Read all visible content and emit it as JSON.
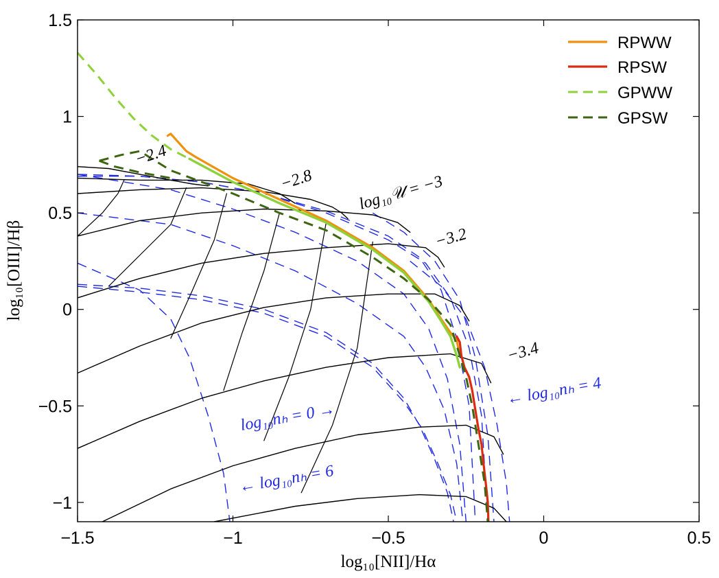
{
  "chart_data": {
    "type": "line",
    "xlabel": "log₁₀[NII]/Hα",
    "ylabel": "log₁₀[OIII]/Hβ",
    "xlim": [
      -1.5,
      0.5
    ],
    "ylim": [
      -1.1,
      1.5
    ],
    "xticks": [
      -1.5,
      -1,
      -0.5,
      0,
      0.5
    ],
    "xtick_labels": [
      "−1.5",
      "−1",
      "−0.5",
      "0",
      "0.5"
    ],
    "yticks": [
      -1,
      -0.5,
      0,
      0.5,
      1,
      1.5
    ],
    "ytick_labels": [
      "−1",
      "−0.5",
      "0",
      "0.5",
      "1",
      "1.5"
    ],
    "legend_position": "top-right",
    "legend": [
      {
        "name": "RPWW",
        "color": "#f0900f",
        "style": "solid"
      },
      {
        "name": "RPSW",
        "color": "#de2a10",
        "style": "solid"
      },
      {
        "name": "GPWW",
        "color": "#8fd13a",
        "style": "dashed"
      },
      {
        "name": "GPSW",
        "color": "#3e6612",
        "style": "dashed"
      }
    ],
    "series": [
      {
        "name": "RPWW",
        "color": "#f0900f",
        "style": "solid",
        "width": 3.2,
        "x": [
          -1.21,
          -1.2,
          -1.15,
          -1.12,
          -1.0,
          -0.85,
          -0.7,
          -0.55,
          -0.45,
          -0.37,
          -0.33,
          -0.3,
          -0.28,
          -0.275,
          -0.27
        ],
        "y": [
          0.9,
          0.91,
          0.82,
          0.79,
          0.68,
          0.57,
          0.46,
          0.32,
          0.2,
          0.05,
          -0.05,
          -0.12,
          -0.16,
          -0.2,
          -0.23
        ]
      },
      {
        "name": "RPSW",
        "color": "#de2a10",
        "style": "solid",
        "width": 3.2,
        "x": [
          -0.28,
          -0.27,
          -0.265,
          -0.255,
          -0.24,
          -0.23,
          -0.22,
          -0.21,
          -0.2,
          -0.195,
          -0.19,
          -0.185,
          -0.18,
          -0.178
        ],
        "y": [
          -0.14,
          -0.17,
          -0.24,
          -0.3,
          -0.35,
          -0.42,
          -0.52,
          -0.62,
          -0.7,
          -0.78,
          -0.85,
          -0.92,
          -1.0,
          -1.1
        ]
      },
      {
        "name": "GPWW",
        "color": "#8fd13a",
        "style": "dashed",
        "width": 3,
        "x": [
          -1.5,
          -1.44,
          -1.38,
          -1.32,
          -1.26,
          -1.2,
          -1.14
        ],
        "y": [
          1.33,
          1.22,
          1.1,
          0.99,
          0.9,
          0.83,
          0.78
        ]
      },
      {
        "name": "GPWW",
        "color": "#8fd13a",
        "style": "solid",
        "width": 3.4,
        "x": [
          -1.14,
          -1.0,
          -0.85,
          -0.7,
          -0.55,
          -0.45,
          -0.37,
          -0.33,
          -0.3,
          -0.28,
          -0.27
        ],
        "y": [
          0.78,
          0.66,
          0.55,
          0.45,
          0.31,
          0.19,
          0.04,
          -0.06,
          -0.14,
          -0.24,
          -0.3
        ]
      },
      {
        "name": "GPSW",
        "color": "#3e6612",
        "style": "dashed",
        "width": 3,
        "x": [
          -1.43,
          -1.36,
          -1.3,
          -1.2,
          -1.0,
          -0.85,
          -0.7,
          -0.55,
          -0.45,
          -0.37,
          -0.3,
          -0.27,
          -0.25,
          -0.23,
          -0.21,
          -0.19,
          -0.18
        ],
        "y": [
          0.77,
          0.8,
          0.82,
          0.72,
          0.6,
          0.5,
          0.41,
          0.27,
          0.16,
          0.05,
          -0.08,
          -0.24,
          -0.35,
          -0.5,
          -0.7,
          -0.9,
          -1.1
        ]
      },
      {
        "name": "GPSW",
        "color": "#3e6612",
        "style": "dashed",
        "width": 3,
        "x": [
          -1.43,
          -1.38,
          -1.3,
          -1.2
        ],
        "y": [
          0.77,
          0.74,
          0.71,
          0.68
        ]
      }
    ],
    "u_grid": {
      "color": "#000000",
      "style": "solid",
      "lines": [
        {
          "x": [
            -1.5,
            -1.4,
            -1.3,
            -1.2,
            -1.13,
            -1.08
          ],
          "y": [
            0.74,
            0.73,
            0.7,
            0.67,
            0.65,
            0.64
          ]
        },
        {
          "x": [
            -1.5,
            -1.3,
            -1.1,
            -0.95,
            -0.85,
            -0.8
          ],
          "y": [
            0.68,
            0.67,
            0.67,
            0.65,
            0.6,
            0.55
          ]
        },
        {
          "x": [
            -1.5,
            -1.3,
            -1.1,
            -0.9,
            -0.75,
            -0.68,
            -0.65,
            -0.63
          ],
          "y": [
            0.6,
            0.62,
            0.63,
            0.61,
            0.57,
            0.53,
            0.5,
            0.47
          ]
        },
        {
          "x": [
            -1.5,
            -1.3,
            -1.1,
            -0.9,
            -0.7,
            -0.55,
            -0.47,
            -0.43
          ],
          "y": [
            0.38,
            0.46,
            0.5,
            0.52,
            0.51,
            0.49,
            0.45,
            0.4
          ]
        },
        {
          "x": [
            -1.5,
            -1.3,
            -1.1,
            -0.9,
            -0.7,
            -0.5,
            -0.38,
            -0.34,
            -0.32
          ],
          "y": [
            0.06,
            0.16,
            0.24,
            0.29,
            0.32,
            0.34,
            0.32,
            0.27,
            0.22
          ]
        },
        {
          "x": [
            -1.5,
            -1.3,
            -1.1,
            -0.9,
            -0.7,
            -0.5,
            -0.35,
            -0.27,
            -0.24
          ],
          "y": [
            -0.33,
            -0.19,
            -0.07,
            0.01,
            0.06,
            0.08,
            0.08,
            0.02,
            -0.06
          ]
        },
        {
          "x": [
            -1.5,
            -1.3,
            -1.1,
            -0.9,
            -0.7,
            -0.5,
            -0.3,
            -0.2,
            -0.17
          ],
          "y": [
            -0.72,
            -0.58,
            -0.46,
            -0.37,
            -0.3,
            -0.25,
            -0.23,
            -0.28,
            -0.38
          ]
        },
        {
          "x": [
            -1.42,
            -1.2,
            -1.0,
            -0.8,
            -0.6,
            -0.4,
            -0.25,
            -0.16,
            -0.13
          ],
          "y": [
            -1.1,
            -0.93,
            -0.81,
            -0.72,
            -0.65,
            -0.61,
            -0.6,
            -0.66,
            -0.75
          ]
        },
        {
          "x": [
            -1.06,
            -0.8,
            -0.6,
            -0.4,
            -0.25,
            -0.16,
            -0.12
          ],
          "y": [
            -1.1,
            -1.02,
            -0.98,
            -0.96,
            -0.97,
            -1.03,
            -1.1
          ]
        }
      ]
    },
    "n_grid": {
      "color": "#000000",
      "style": "solid",
      "lines": [
        {
          "x": [
            -1.5,
            -1.42,
            -1.37,
            -1.35
          ],
          "y": [
            0.38,
            0.5,
            0.6,
            0.67
          ]
        },
        {
          "x": [
            -1.4,
            -1.3,
            -1.2,
            -1.15
          ],
          "y": [
            0.12,
            0.28,
            0.44,
            0.63
          ]
        },
        {
          "x": [
            -1.2,
            -1.13,
            -1.06,
            -1.02
          ],
          "y": [
            -0.15,
            0.1,
            0.36,
            0.6
          ]
        },
        {
          "x": [
            -1.03,
            -0.97,
            -0.9,
            -0.85
          ],
          "y": [
            -0.42,
            -0.12,
            0.2,
            0.5
          ]
        },
        {
          "x": [
            -0.9,
            -0.82,
            -0.75,
            -0.7
          ],
          "y": [
            -0.68,
            -0.35,
            0.0,
            0.45
          ]
        },
        {
          "x": [
            -0.78,
            -0.68,
            -0.6,
            -0.55
          ],
          "y": [
            -0.95,
            -0.6,
            -0.2,
            0.35
          ]
        }
      ]
    },
    "density_curves": {
      "color": "#1e28e6",
      "style": "dashed",
      "lines": [
        {
          "x": [
            -1.5,
            -1.3,
            -1.2,
            -1.14,
            -1.08,
            -1.03,
            -1.01
          ],
          "y": [
            0.24,
            0.1,
            -0.05,
            -0.25,
            -0.55,
            -0.85,
            -1.1
          ]
        },
        {
          "x": [
            -1.5,
            -1.3,
            -1.1,
            -0.9,
            -0.7,
            -0.55,
            -0.45,
            -0.4,
            -0.35,
            -0.31,
            -0.29
          ],
          "y": [
            0.13,
            0.11,
            0.07,
            0.0,
            -0.12,
            -0.28,
            -0.46,
            -0.6,
            -0.78,
            -0.95,
            -1.1
          ]
        },
        {
          "x": [
            -1.5,
            -1.3,
            -1.1,
            -0.9,
            -0.7,
            -0.55,
            -0.45,
            -0.39,
            -0.34,
            -0.3,
            -0.28
          ],
          "y": [
            0.12,
            0.09,
            0.05,
            -0.02,
            -0.14,
            -0.3,
            -0.48,
            -0.62,
            -0.8,
            -0.96,
            -1.1
          ]
        },
        {
          "x": [
            -1.5,
            -1.2,
            -1.0,
            -0.8,
            -0.6,
            -0.45,
            -0.38,
            -0.32,
            -0.28,
            -0.26
          ],
          "y": [
            0.5,
            0.44,
            0.33,
            0.2,
            0.03,
            -0.14,
            -0.3,
            -0.52,
            -0.8,
            -1.1
          ]
        },
        {
          "x": [
            -1.5,
            -1.2,
            -1.0,
            -0.8,
            -0.6,
            -0.45,
            -0.37,
            -0.31,
            -0.27,
            -0.25
          ],
          "y": [
            0.7,
            0.62,
            0.52,
            0.4,
            0.25,
            0.08,
            -0.1,
            -0.36,
            -0.7,
            -1.1
          ]
        },
        {
          "x": [
            -1.5,
            -1.3,
            -1.1,
            -0.9,
            -0.7,
            -0.5,
            -0.4,
            -0.33,
            -0.28,
            -0.24,
            -0.22
          ],
          "y": [
            0.69,
            0.69,
            0.66,
            0.6,
            0.51,
            0.38,
            0.27,
            0.1,
            -0.15,
            -0.5,
            -1.1
          ]
        },
        {
          "x": [
            -1.5,
            -1.3,
            -1.1,
            -0.9,
            -0.7,
            -0.5,
            -0.38,
            -0.3,
            -0.24,
            -0.2,
            -0.18
          ],
          "y": [
            0.7,
            0.69,
            0.66,
            0.6,
            0.5,
            0.36,
            0.24,
            0.06,
            -0.2,
            -0.55,
            -1.1
          ]
        },
        {
          "x": [
            -0.55,
            -0.45,
            -0.35,
            -0.27,
            -0.22,
            -0.18,
            -0.16
          ],
          "y": [
            0.5,
            0.4,
            0.25,
            0.05,
            -0.25,
            -0.65,
            -1.1
          ]
        },
        {
          "x": [
            -0.43,
            -0.33,
            -0.25,
            -0.19,
            -0.15,
            -0.12,
            -0.11
          ],
          "y": [
            0.25,
            0.12,
            -0.05,
            -0.3,
            -0.6,
            -0.9,
            -1.1
          ]
        }
      ]
    },
    "annotations": [
      {
        "text": "−2.4",
        "color": "#000000",
        "rotate": -18
      },
      {
        "text": "−2.8",
        "color": "#000000",
        "rotate": -18
      },
      {
        "text": "log₁₀𝒰 = −3",
        "color": "#000000",
        "rotate": -16
      },
      {
        "text": "−3.2",
        "color": "#000000",
        "rotate": -16
      },
      {
        "text": "−3.4",
        "color": "#000000",
        "rotate": -16
      },
      {
        "text": "log₁₀nₕ = 0 →",
        "color": "#1e28e6",
        "rotate": -10
      },
      {
        "text": "← log₁₀nₕ = 4",
        "color": "#1e28e6",
        "rotate": -10
      },
      {
        "text": "← log₁₀nₕ = 6",
        "color": "#1e28e6",
        "rotate": -10
      }
    ]
  }
}
